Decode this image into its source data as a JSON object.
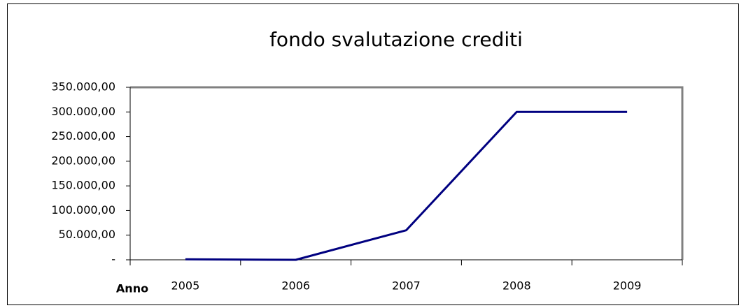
{
  "chart_data": {
    "type": "line",
    "title": "fondo svalutazione crediti",
    "x_label": "Anno",
    "categories": [
      "2005",
      "2006",
      "2007",
      "2008",
      "2009"
    ],
    "series": [
      {
        "name": "fondo svalutazione crediti",
        "color": "#000080",
        "values": [
          1000,
          0,
          60000,
          300000,
          300000
        ]
      }
    ],
    "ylim": [
      0,
      350000
    ],
    "yticks": [
      {
        "value": 0,
        "label": "-"
      },
      {
        "value": 50000,
        "label": "50.000,00"
      },
      {
        "value": 100000,
        "label": "100.000,00"
      },
      {
        "value": 150000,
        "label": "150.000,00"
      },
      {
        "value": 200000,
        "label": "200.000,00"
      },
      {
        "value": 250000,
        "label": "250.000,00"
      },
      {
        "value": 300000,
        "label": "300.000,00"
      },
      {
        "value": 350000,
        "label": "350.000,00"
      }
    ],
    "grid": false
  }
}
